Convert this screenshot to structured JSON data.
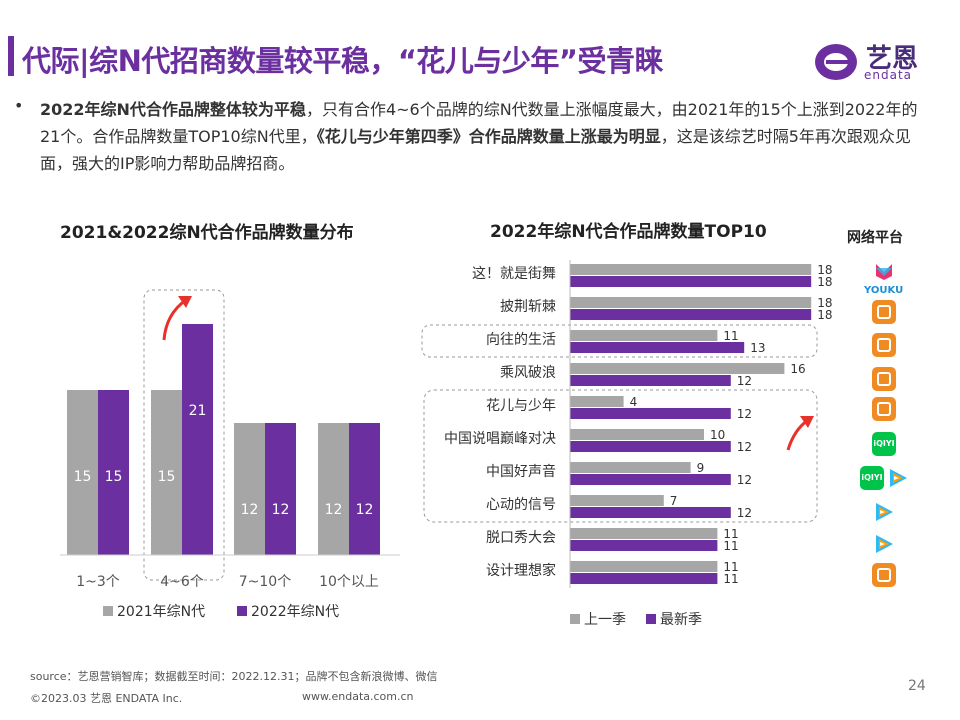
{
  "header": {
    "title": "代际|综N代招商数量较平稳，“花儿与少年”受青睐",
    "logo_cn": "艺恩",
    "logo_en": "endata"
  },
  "summary": {
    "bullet": "•",
    "part1": "2022年综N代合作品牌整体较为平稳",
    "part2": "，只有合作4~6个品牌的综N代数量上涨幅度最大，由2021年的15个上涨到2022年的21个。合作品牌数量TOP10综N代里，",
    "part3": "《花儿与少年第四季》合作品牌数量上涨最为明显",
    "part4": "，这是该综艺时隔5年再次跟观众见面，强大的IP影响力帮助品牌招商。"
  },
  "platform_title": "网络平台",
  "platforms": [
    "youku-icon",
    "mgtv-icon",
    "mgtv-icon",
    "mgtv-icon",
    "mgtv-icon",
    "iqiyi-icon",
    "iqiyi-tencent-icon",
    "tencent-video-icon",
    "tencent-video-icon",
    "mgtv-icon"
  ],
  "platform_labels": {
    "youku": "YOUKU",
    "iqiyi": "iQIYI"
  },
  "colors": {
    "accent": "#6b2fa0",
    "gray": "#a6a6a6",
    "arrow": "#e8312a"
  },
  "chart_data": [
    {
      "type": "bar",
      "title": "2021&2022综N代合作品牌数量分布",
      "categories": [
        "1~3个",
        "4~6个",
        "7~10个",
        "10个以上"
      ],
      "series": [
        {
          "name": "2021年综N代",
          "values": [
            15,
            15,
            12,
            12
          ]
        },
        {
          "name": "2022年综N代",
          "values": [
            15,
            21,
            12,
            12
          ]
        }
      ],
      "ylim": [
        0,
        25
      ],
      "legend": "bottom"
    },
    {
      "type": "bar",
      "orientation": "horizontal",
      "title": "2022年综N代合作品牌数量TOP10",
      "categories": [
        "这！就是街舞",
        "披荆斩棘",
        "向往的生活",
        "乘风破浪",
        "花儿与少年",
        "中国说唱巅峰对决",
        "中国好声音",
        "心动的信号",
        "脱口秀大会",
        "设计理想家"
      ],
      "series": [
        {
          "name": "上一季",
          "values": [
            18,
            18,
            11,
            16,
            4,
            10,
            9,
            7,
            11,
            11
          ]
        },
        {
          "name": "最新季",
          "values": [
            18,
            18,
            13,
            12,
            12,
            12,
            12,
            12,
            11,
            11
          ]
        }
      ],
      "xlim": [
        0,
        18
      ],
      "legend": "bottom"
    }
  ],
  "footer": {
    "source": "source：艺恩营销智库；数据截至时间：2022.12.31；品牌不包含新浪微博、微信",
    "copyright": "©2023.03 艺恩 ENDATA Inc.",
    "website": "www.endata.com.cn",
    "page": "24"
  }
}
